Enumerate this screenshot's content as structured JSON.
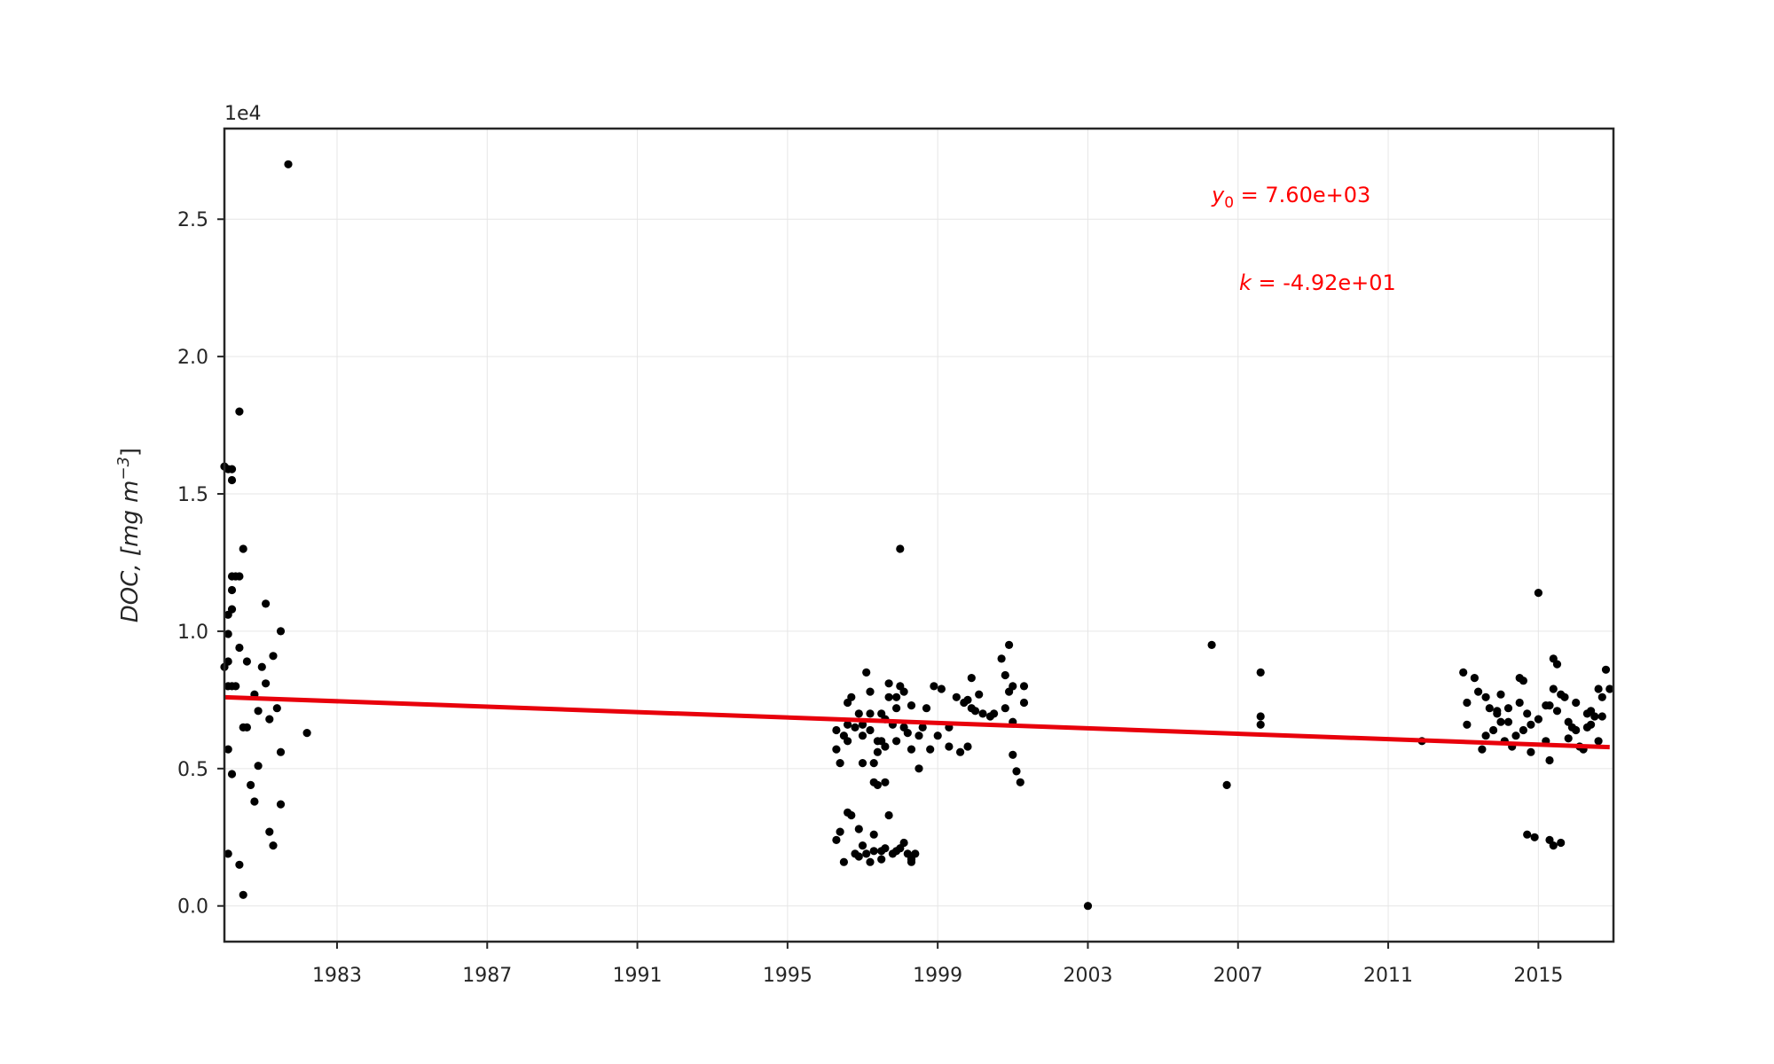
{
  "chart_data": {
    "type": "scatter",
    "title": "",
    "xlabel": "",
    "ylabel": "DOC, [mg m",
    "ylabel_sup": "−3",
    "ylabel_close": "]",
    "y_offset_label": "1e4",
    "xlim": [
      1980.0,
      2017.0
    ],
    "ylim": [
      -0.13,
      2.83
    ],
    "xticks": [
      1983,
      1987,
      1991,
      1995,
      1999,
      2003,
      2007,
      2011,
      2015
    ],
    "xtick_labels": [
      "1983",
      "1987",
      "1991",
      "1995",
      "1999",
      "2003",
      "2007",
      "2011",
      "2015"
    ],
    "yticks": [
      0.0,
      0.5,
      1.0,
      1.5,
      2.0,
      2.5
    ],
    "ytick_labels": [
      "0.0",
      "0.5",
      "1.0",
      "1.5",
      "2.0",
      "2.5"
    ],
    "grid": true,
    "colors": {
      "points": "#000000",
      "fit": "#e8000b",
      "annotation": "#ff0000",
      "axes": "#262626",
      "grid": "#e6e6e6"
    },
    "fit": {
      "x": [
        1980.0,
        2016.9
      ],
      "y": [
        0.76,
        0.578
      ],
      "y0": "7.60e+03",
      "k": "-4.92e+01"
    },
    "annotations": [
      {
        "var": "y",
        "sub": "0",
        "text": " = 7.60e+03"
      },
      {
        "var": "k",
        "sub": "",
        "text": " = -4.92e+01"
      }
    ],
    "points": [
      [
        1980.0,
        1.6
      ],
      [
        1980.1,
        1.59
      ],
      [
        1980.2,
        1.59
      ],
      [
        1980.2,
        1.55
      ],
      [
        1980.1,
        1.06
      ],
      [
        1980.2,
        1.08
      ],
      [
        1980.2,
        1.15
      ],
      [
        1980.3,
        1.2
      ],
      [
        1980.2,
        1.2
      ],
      [
        1980.1,
        0.99
      ],
      [
        1980.1,
        0.89
      ],
      [
        1980.0,
        0.87
      ],
      [
        1980.1,
        0.8
      ],
      [
        1980.2,
        0.8
      ],
      [
        1980.3,
        0.8
      ],
      [
        1980.1,
        0.57
      ],
      [
        1980.2,
        0.48
      ],
      [
        1980.1,
        0.19
      ],
      [
        1980.4,
        1.8
      ],
      [
        1980.5,
        1.3
      ],
      [
        1980.4,
        1.2
      ],
      [
        1980.4,
        0.94
      ],
      [
        1980.5,
        0.65
      ],
      [
        1980.6,
        0.65
      ],
      [
        1980.6,
        0.89
      ],
      [
        1980.4,
        0.15
      ],
      [
        1980.5,
        0.04
      ],
      [
        1980.7,
        0.44
      ],
      [
        1980.8,
        0.77
      ],
      [
        1980.9,
        0.71
      ],
      [
        1980.8,
        0.38
      ],
      [
        1980.9,
        0.51
      ],
      [
        1981.0,
        0.87
      ],
      [
        1981.1,
        0.81
      ],
      [
        1981.1,
        1.1
      ],
      [
        1981.2,
        0.68
      ],
      [
        1981.3,
        0.91
      ],
      [
        1981.2,
        0.27
      ],
      [
        1981.3,
        0.22
      ],
      [
        1981.5,
        1.0
      ],
      [
        1981.4,
        0.72
      ],
      [
        1981.5,
        0.37
      ],
      [
        1981.5,
        0.56
      ],
      [
        1981.7,
        2.7
      ],
      [
        1982.2,
        0.63
      ],
      [
        1996.3,
        0.64
      ],
      [
        1996.3,
        0.57
      ],
      [
        1996.4,
        0.52
      ],
      [
        1996.5,
        0.62
      ],
      [
        1996.6,
        0.6
      ],
      [
        1996.6,
        0.66
      ],
      [
        1996.6,
        0.74
      ],
      [
        1996.7,
        0.76
      ],
      [
        1996.8,
        0.65
      ],
      [
        1996.9,
        0.7
      ],
      [
        1997.0,
        0.66
      ],
      [
        1997.0,
        0.52
      ],
      [
        1997.1,
        0.85
      ],
      [
        1997.2,
        0.78
      ],
      [
        1997.2,
        0.64
      ],
      [
        1997.3,
        0.52
      ],
      [
        1997.3,
        0.45
      ],
      [
        1997.4,
        0.56
      ],
      [
        1997.5,
        0.7
      ],
      [
        1997.5,
        0.6
      ],
      [
        1997.6,
        0.58
      ],
      [
        1997.7,
        0.76
      ],
      [
        1997.7,
        0.81
      ],
      [
        1997.8,
        0.66
      ],
      [
        1997.9,
        0.6
      ],
      [
        1997.9,
        0.76
      ],
      [
        1998.0,
        1.3
      ],
      [
        1998.0,
        0.8
      ],
      [
        1998.1,
        0.78
      ],
      [
        1998.1,
        0.65
      ],
      [
        1998.2,
        0.63
      ],
      [
        1998.3,
        0.57
      ],
      [
        1998.3,
        0.73
      ],
      [
        1998.5,
        0.62
      ],
      [
        1998.5,
        0.5
      ],
      [
        1998.6,
        0.65
      ],
      [
        1998.7,
        0.72
      ],
      [
        1998.8,
        0.57
      ],
      [
        1998.9,
        0.8
      ],
      [
        1999.0,
        0.62
      ],
      [
        1999.1,
        0.79
      ],
      [
        1999.3,
        0.65
      ],
      [
        1999.3,
        0.58
      ],
      [
        1999.5,
        0.76
      ],
      [
        1999.6,
        0.56
      ],
      [
        1999.7,
        0.74
      ],
      [
        1999.8,
        0.58
      ],
      [
        1999.8,
        0.75
      ],
      [
        1999.9,
        0.72
      ],
      [
        1999.9,
        0.83
      ],
      [
        2000.0,
        0.71
      ],
      [
        2000.1,
        0.77
      ],
      [
        2000.2,
        0.7
      ],
      [
        2000.4,
        0.69
      ],
      [
        2000.5,
        0.7
      ],
      [
        2000.7,
        0.9
      ],
      [
        2000.8,
        0.84
      ],
      [
        2000.8,
        0.72
      ],
      [
        2000.9,
        0.78
      ],
      [
        2000.9,
        0.95
      ],
      [
        2001.0,
        0.8
      ],
      [
        2001.0,
        0.67
      ],
      [
        2001.0,
        0.55
      ],
      [
        2001.1,
        0.49
      ],
      [
        2001.2,
        0.45
      ],
      [
        2001.3,
        0.8
      ],
      [
        2001.3,
        0.74
      ],
      [
        1996.3,
        0.24
      ],
      [
        1996.4,
        0.27
      ],
      [
        1996.5,
        0.16
      ],
      [
        1996.6,
        0.34
      ],
      [
        1996.7,
        0.33
      ],
      [
        1996.8,
        0.19
      ],
      [
        1996.9,
        0.28
      ],
      [
        1996.9,
        0.18
      ],
      [
        1997.0,
        0.22
      ],
      [
        1997.1,
        0.19
      ],
      [
        1997.2,
        0.16
      ],
      [
        1997.3,
        0.26
      ],
      [
        1997.3,
        0.2
      ],
      [
        1997.5,
        0.17
      ],
      [
        1997.5,
        0.2
      ],
      [
        1997.6,
        0.21
      ],
      [
        1997.7,
        0.33
      ],
      [
        1997.8,
        0.19
      ],
      [
        1997.9,
        0.2
      ],
      [
        1998.0,
        0.21
      ],
      [
        1998.1,
        0.23
      ],
      [
        1998.2,
        0.19
      ],
      [
        1998.3,
        0.17
      ],
      [
        1998.3,
        0.16
      ],
      [
        1998.4,
        0.19
      ],
      [
        1997.4,
        0.44
      ],
      [
        1997.6,
        0.45
      ],
      [
        1997.2,
        0.7
      ],
      [
        1997.6,
        0.68
      ],
      [
        1997.0,
        0.62
      ],
      [
        1997.9,
        0.72
      ],
      [
        1997.4,
        0.6
      ],
      [
        2003.0,
        0.0
      ],
      [
        2006.3,
        0.95
      ],
      [
        2006.7,
        0.44
      ],
      [
        2007.6,
        0.85
      ],
      [
        2007.6,
        0.69
      ],
      [
        2007.6,
        0.66
      ],
      [
        2011.9,
        0.6
      ],
      [
        2013.0,
        0.85
      ],
      [
        2013.1,
        0.74
      ],
      [
        2013.1,
        0.66
      ],
      [
        2013.3,
        0.83
      ],
      [
        2013.4,
        0.78
      ],
      [
        2013.5,
        0.57
      ],
      [
        2013.6,
        0.76
      ],
      [
        2013.6,
        0.62
      ],
      [
        2013.7,
        0.72
      ],
      [
        2013.8,
        0.64
      ],
      [
        2013.9,
        0.71
      ],
      [
        2014.0,
        0.67
      ],
      [
        2014.0,
        0.77
      ],
      [
        2014.1,
        0.6
      ],
      [
        2014.2,
        0.67
      ],
      [
        2014.3,
        0.58
      ],
      [
        2014.4,
        0.62
      ],
      [
        2014.5,
        0.74
      ],
      [
        2014.5,
        0.83
      ],
      [
        2014.6,
        0.64
      ],
      [
        2014.6,
        0.82
      ],
      [
        2014.7,
        0.7
      ],
      [
        2014.7,
        0.26
      ],
      [
        2014.8,
        0.56
      ],
      [
        2014.8,
        0.66
      ],
      [
        2014.9,
        0.25
      ],
      [
        2015.0,
        0.68
      ],
      [
        2015.0,
        1.14
      ],
      [
        2015.2,
        0.73
      ],
      [
        2015.2,
        0.6
      ],
      [
        2015.3,
        0.53
      ],
      [
        2015.3,
        0.73
      ],
      [
        2015.3,
        0.24
      ],
      [
        2015.4,
        0.22
      ],
      [
        2015.4,
        0.79
      ],
      [
        2015.4,
        0.9
      ],
      [
        2015.5,
        0.88
      ],
      [
        2015.5,
        0.71
      ],
      [
        2015.6,
        0.23
      ],
      [
        2015.6,
        0.77
      ],
      [
        2015.7,
        0.76
      ],
      [
        2015.8,
        0.67
      ],
      [
        2015.9,
        0.65
      ],
      [
        2016.0,
        0.64
      ],
      [
        2016.0,
        0.74
      ],
      [
        2016.1,
        0.58
      ],
      [
        2016.2,
        0.57
      ],
      [
        2016.3,
        0.65
      ],
      [
        2016.4,
        0.66
      ],
      [
        2016.4,
        0.71
      ],
      [
        2016.5,
        0.69
      ],
      [
        2016.6,
        0.79
      ],
      [
        2016.6,
        0.6
      ],
      [
        2016.7,
        0.76
      ],
      [
        2016.7,
        0.69
      ],
      [
        2016.8,
        0.86
      ],
      [
        2016.9,
        0.79
      ],
      [
        2016.3,
        0.7
      ],
      [
        2015.8,
        0.61
      ],
      [
        2014.2,
        0.72
      ],
      [
        2013.9,
        0.7
      ]
    ]
  }
}
